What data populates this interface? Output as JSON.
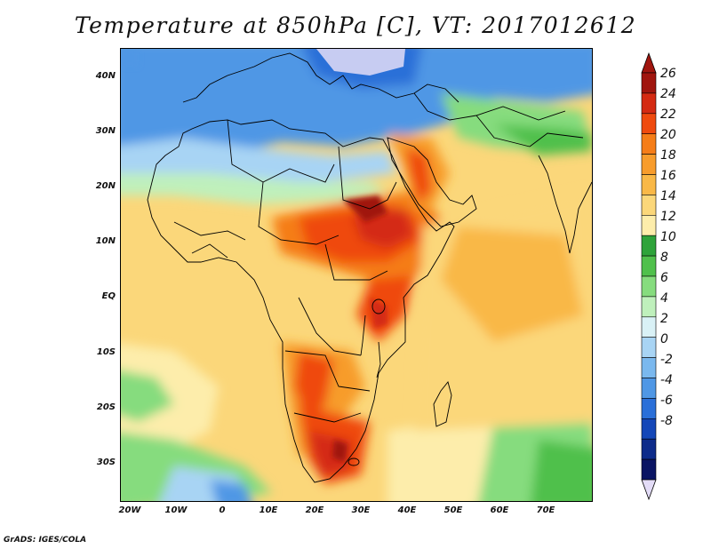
{
  "title": "Temperature at 850hPa [C], VT: 2017012612",
  "credit": "GrADS: IGES/COLA",
  "map": {
    "y_axis_labels": [
      "40N",
      "30N",
      "20N",
      "10N",
      "EQ",
      "10S",
      "20S",
      "30S"
    ],
    "x_axis_labels": [
      "20W",
      "10W",
      "0",
      "10E",
      "20E",
      "30E",
      "40E",
      "50E",
      "60E",
      "70E"
    ],
    "lon_range": [
      -22,
      80
    ],
    "lat_range": [
      -37,
      45
    ]
  },
  "colorbar": {
    "labels": [
      "26",
      "24",
      "22",
      "20",
      "18",
      "16",
      "14",
      "12",
      "10",
      "8",
      "6",
      "4",
      "2",
      "0",
      "-2",
      "-4",
      "-6",
      "-8"
    ],
    "colors_top_to_bottom": [
      "#a0150e",
      "#d42a12",
      "#ef4a0e",
      "#f57d18",
      "#f79c2c",
      "#f9b847",
      "#fbd77a",
      "#fdedab",
      "#2ea33a",
      "#50c04c",
      "#86dc7e",
      "#bff0bc",
      "#d9f1f6",
      "#a8d4f4",
      "#7ab8ee",
      "#4f97e5",
      "#2a6fd8",
      "#1447b8",
      "#0d2b8a",
      "#0a1463"
    ],
    "over_color": "#a0150e",
    "under_color": "#e3dcf7"
  }
}
